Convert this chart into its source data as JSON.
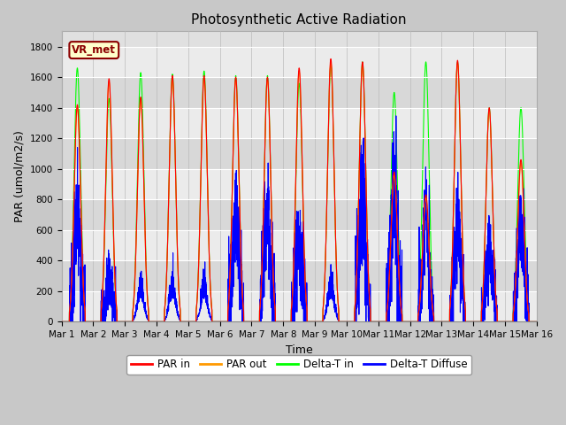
{
  "title": "Photosynthetic Active Radiation",
  "xlabel": "Time",
  "ylabel": "PAR (umol/m2/s)",
  "label_box": "VR_met",
  "ylim": [
    0,
    1900
  ],
  "yticks": [
    0,
    200,
    400,
    600,
    800,
    1000,
    1200,
    1400,
    1600,
    1800
  ],
  "x_labels": [
    "Mar 1",
    "Mar 2",
    "Mar 3",
    "Mar 4",
    "Mar 5",
    "Mar 6",
    "Mar 7",
    "Mar 8",
    "Mar 9",
    "Mar 10",
    "Mar 11",
    "Mar 12",
    "Mar 13",
    "Mar 14",
    "Mar 15",
    "Mar 16"
  ],
  "series_colors": {
    "par_in": "#ff0000",
    "par_out": "#ff9900",
    "delta_t_in": "#00ff00",
    "delta_t_diffuse": "#0000ff"
  },
  "legend_labels": [
    "PAR in",
    "PAR out",
    "Delta-T in",
    "Delta-T Diffuse"
  ],
  "fig_bg": "#d0d0d0",
  "plot_bg": "#e8e8e8",
  "band_light": "#ebebeb",
  "band_dark": "#d8d8d8",
  "figsize": [
    6.4,
    4.8
  ],
  "dpi": 100,
  "par_in_peaks": [
    1420,
    1590,
    1470,
    1610,
    1610,
    1600,
    1600,
    1660,
    1720,
    1700,
    980,
    830,
    1710,
    1400,
    1060
  ],
  "par_out_peaks": [
    1400,
    1570,
    1450,
    1590,
    1590,
    1580,
    1580,
    1640,
    1700,
    1680,
    960,
    810,
    1690,
    1380,
    1040
  ],
  "delta_t_peaks": [
    1660,
    1460,
    1630,
    1620,
    1640,
    1610,
    1610,
    1560,
    1680,
    1700,
    1500,
    1700,
    1700,
    1400,
    1400
  ],
  "diffuse_peaks": [
    680,
    280,
    120,
    100,
    100,
    700,
    700,
    480,
    90,
    840,
    840,
    640,
    640,
    510,
    610
  ],
  "n_days": 15,
  "pts_per_day": 288,
  "day_start": 0.25,
  "day_end": 0.75,
  "sigma": 0.1
}
